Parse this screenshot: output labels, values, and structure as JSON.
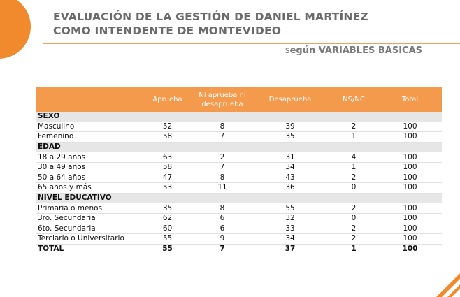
{
  "header": {
    "title": "EVALUACIÓN DE LA GESTIÓN DE DANIEL MARTÍNEZ COMO INTENDENTE DE MONTEVIDEO",
    "subtitle": "según VARIABLES BÁSICAS"
  },
  "table": {
    "columns": [
      "Aprueba",
      "Ni aprueba ni desaprueba",
      "Desaprueba",
      "NS/NC",
      "Total"
    ],
    "sections": [
      {
        "title": "SEXO",
        "rows": [
          {
            "label": "Masculino",
            "values": [
              52,
              8,
              39,
              2,
              100
            ]
          },
          {
            "label": "Femenino",
            "values": [
              58,
              7,
              35,
              1,
              100
            ]
          }
        ]
      },
      {
        "title": "EDAD",
        "rows": [
          {
            "label": "18 a 29 años",
            "values": [
              63,
              2,
              31,
              4,
              100
            ]
          },
          {
            "label": "30 a 49 años",
            "values": [
              58,
              7,
              34,
              1,
              100
            ]
          },
          {
            "label": "50 a 64 años",
            "values": [
              47,
              8,
              43,
              2,
              100
            ]
          },
          {
            "label": "65 años y más",
            "values": [
              53,
              11,
              36,
              0,
              100
            ]
          }
        ]
      },
      {
        "title": "NIVEL EDUCATIVO",
        "rows": [
          {
            "label": "Primaria o menos",
            "values": [
              35,
              8,
              55,
              2,
              100
            ]
          },
          {
            "label": "3ro. Secundaria",
            "values": [
              62,
              6,
              32,
              0,
              100
            ]
          },
          {
            "label": "6to. Secundaria",
            "values": [
              60,
              6,
              33,
              2,
              100
            ]
          },
          {
            "label": "Terciario o Universitario",
            "values": [
              55,
              9,
              34,
              2,
              100
            ]
          }
        ]
      }
    ],
    "total": {
      "label": "TOTAL",
      "values": [
        55,
        7,
        37,
        1,
        100
      ]
    }
  }
}
